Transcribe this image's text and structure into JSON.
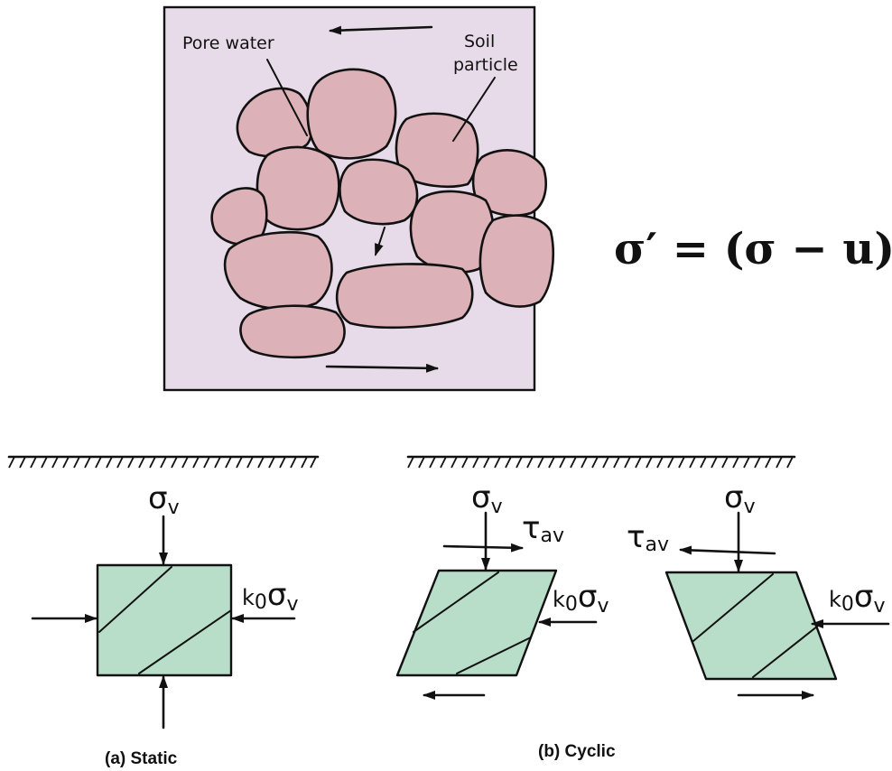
{
  "top_panel": {
    "background": "#e8dbe9",
    "grain_color": "#dcb2b8",
    "labels": {
      "pore_water": "Pore water",
      "soil_particle_line1": "Soil",
      "soil_particle_line2": "particle"
    }
  },
  "formula": {
    "text": "σ′ = (σ − u)"
  },
  "static": {
    "caption": "(a) Static",
    "vertical_stress": "σ",
    "vertical_stress_sub": "v",
    "lateral_k": "k",
    "lateral_k_sub": "0",
    "lateral_sigma": "σ",
    "lateral_sigma_sub": "v",
    "element_color": "#b8dec9"
  },
  "cyclic": {
    "caption": "(b) Cyclic",
    "vertical_stress": "σ",
    "vertical_stress_sub": "v",
    "shear_stress": "τ",
    "shear_stress_sub": "av",
    "lateral_k": "k",
    "lateral_k_sub": "0",
    "lateral_sigma": "σ",
    "lateral_sigma_sub": "v"
  }
}
